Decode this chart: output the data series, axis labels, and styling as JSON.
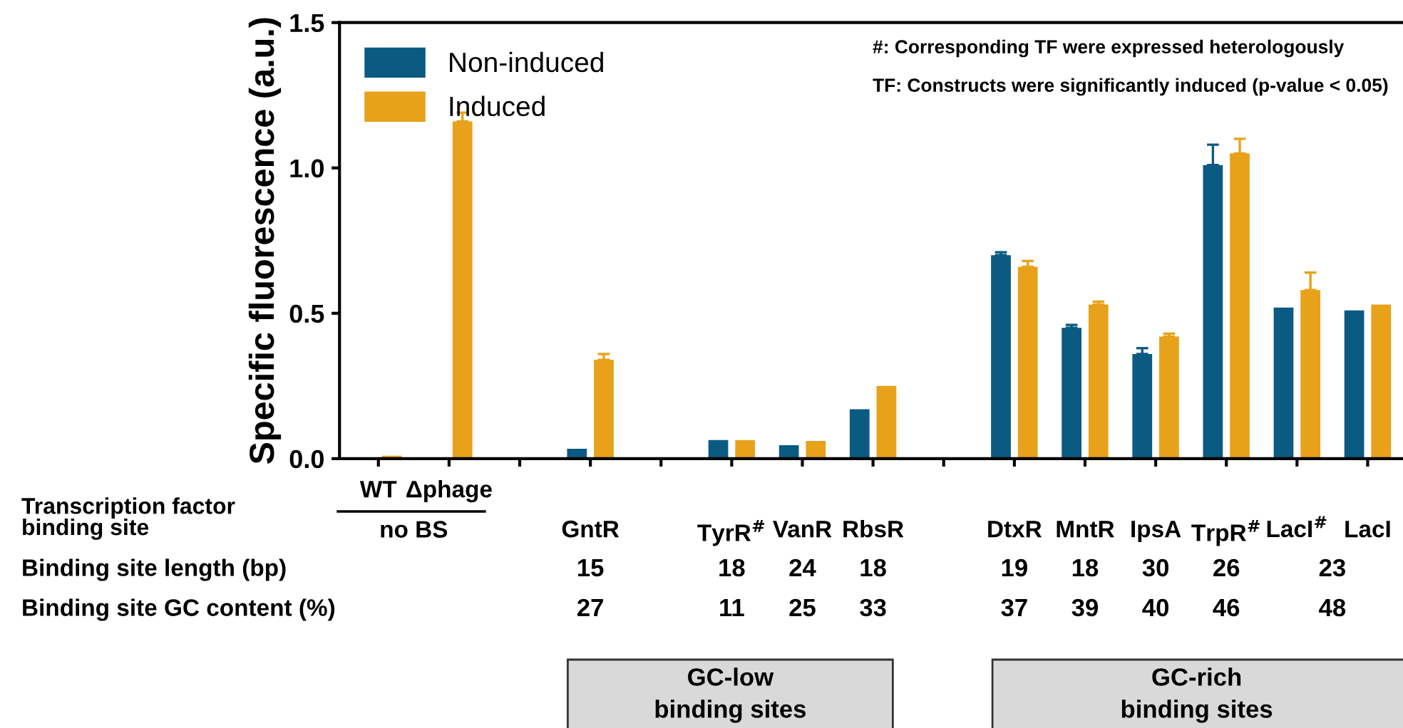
{
  "chart_data": {
    "type": "bar",
    "ylabel": "Specific fluorescence (a.u.)",
    "categories": [
      "WT",
      "Δphage",
      null,
      "GntR",
      null,
      "TyrR$^{#}$",
      "VanR",
      "RbsR",
      null,
      "DtxR",
      "MntR",
      "IpsA",
      "TrpR$^{#}$",
      "LacI$^{#}$",
      "LacI"
    ],
    "series": [
      {
        "name": "Non-induced",
        "color": "#0b5a82",
        "values": [
          0,
          0,
          null,
          0.034,
          null,
          0.064,
          0.046,
          0.17,
          null,
          0.7,
          0.45,
          0.36,
          1.01,
          0.52,
          0.51
        ],
        "errors": [
          null,
          null,
          null,
          null,
          null,
          null,
          null,
          null,
          null,
          [
            0.7,
            0.71
          ],
          [
            0.45,
            0.46
          ],
          [
            0.36,
            0.38
          ],
          [
            1.01,
            1.08
          ],
          null,
          null
        ]
      },
      {
        "name": "Induced",
        "color": "#e8a11a",
        "values": [
          0.01,
          1.16,
          null,
          0.34,
          null,
          0.064,
          0.061,
          0.25,
          null,
          0.66,
          0.53,
          0.42,
          1.05,
          0.58,
          0.53
        ],
        "errors": [
          null,
          [
            1.16,
            1.19
          ],
          null,
          [
            0.34,
            0.36
          ],
          null,
          null,
          null,
          null,
          null,
          [
            0.66,
            0.68
          ],
          [
            0.53,
            0.54
          ],
          [
            0.42,
            0.43
          ],
          [
            1.05,
            1.1
          ],
          [
            0.58,
            0.64
          ],
          null
        ]
      }
    ],
    "ylim": [
      0,
      1.5
    ],
    "yticks": [
      {
        "value": 0,
        "label": "0.0"
      },
      0.5,
      {
        "value": 1,
        "label": "1.0"
      },
      1.5
    ],
    "legend": "top left",
    "grid": false,
    "annotations": [
      "Transcription factor\nbinding site",
      "no BS",
      "Binding site length (bp)",
      "15",
      "18",
      "24",
      "18",
      "19",
      "18",
      "30",
      "26",
      "23",
      "Binding site GC content (%)",
      "27",
      "11",
      "25",
      "33",
      "37",
      "39",
      "40",
      "46",
      "48",
      "GC-low\nbinding sites",
      "GC-rich\nbinding sites",
      "#: Corresponding TF were expressed heterologously",
      "TF: Constructs were significantly induced (p-value < 0.05)"
    ]
  }
}
